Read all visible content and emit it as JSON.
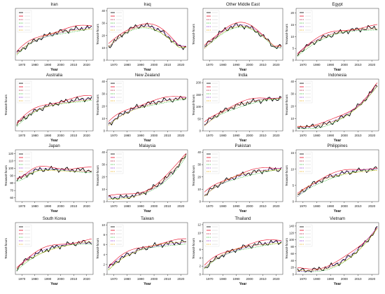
{
  "figure": {
    "colors": {
      "observed": "#000000",
      "red": "#e8001e",
      "darkred": "#a6002a",
      "green": "#2db82d",
      "purple": "#8a1fd6",
      "gold": "#e6a800",
      "blue": "#3a3aff",
      "grid": "#e3e3e3"
    },
    "legend_line_styles": [
      "solid",
      "solid",
      "dashed",
      "dashed",
      "dashed",
      "dashed"
    ]
  },
  "chart_data": [
    {
      "type": "line",
      "title": "Iran",
      "xlabel": "Year",
      "ylabel": "",
      "xticks": [
        1970,
        1980,
        1990,
        2000,
        2010,
        2020
      ],
      "xlim": [
        1965,
        2025
      ],
      "yticks": [],
      "ylim": [
        0,
        10
      ]
    },
    {
      "type": "line",
      "title": "Iraq",
      "xlabel": "Year",
      "ylabel": "Terawatt-hours",
      "xticks": [
        1970,
        1980,
        1990,
        2000,
        2010,
        2020
      ],
      "xlim": [
        1965,
        2025
      ],
      "yticks": [
        0,
        10,
        20,
        30,
        40
      ],
      "ylim": [
        0,
        42
      ]
    },
    {
      "type": "line",
      "title": "Other Middle East",
      "xlabel": "Year",
      "ylabel": "Terawatt-hours",
      "xticks": [
        1970,
        1980,
        1990,
        2000,
        2010,
        2020
      ],
      "xlim": [
        1965,
        2025
      ],
      "yticks": [],
      "ylim": [
        0,
        10
      ]
    },
    {
      "type": "line",
      "title": "Egypt",
      "xlabel": "Year",
      "ylabel": "Terawatt-hours",
      "xticks": [
        1970,
        1980,
        1990,
        2000,
        2010,
        2020
      ],
      "xlim": [
        1965,
        2025
      ],
      "yticks": [
        0,
        5,
        10,
        15,
        20
      ],
      "ylim": [
        0,
        22
      ]
    },
    {
      "type": "line",
      "title": "Australia",
      "xlabel": "Year",
      "ylabel": "Terawatt-hours",
      "xticks": [
        1970,
        1980,
        1990,
        2000,
        2010,
        2020
      ],
      "xlim": [
        1965,
        2025
      ],
      "yticks": [],
      "ylim": [
        0,
        10
      ]
    },
    {
      "type": "line",
      "title": "New Zealand",
      "xlabel": "Year",
      "ylabel": "Terawatt-hours",
      "xticks": [
        1970,
        1980,
        1990,
        2000,
        2010,
        2020
      ],
      "xlim": [
        1965,
        2025
      ],
      "yticks": [
        0,
        10,
        20,
        30,
        40
      ],
      "ylim": [
        0,
        42
      ]
    },
    {
      "type": "line",
      "title": "India",
      "xlabel": "Year",
      "ylabel": "Terawatt-hours",
      "xticks": [
        1970,
        1980,
        1990,
        2000,
        2010,
        2020
      ],
      "xlim": [
        1965,
        2025
      ],
      "yticks": [
        0,
        50,
        100,
        150,
        200
      ],
      "ylim": [
        0,
        215
      ]
    },
    {
      "type": "line",
      "title": "Indonesia",
      "xlabel": "Year",
      "ylabel": "Terawatt-hours",
      "xticks": [
        1970,
        1980,
        1990,
        2000,
        2010,
        2020
      ],
      "xlim": [
        1965,
        2025
      ],
      "yticks": [
        0,
        10,
        20,
        30,
        40
      ],
      "ylim": [
        0,
        42
      ]
    },
    {
      "type": "line",
      "title": "Japan",
      "xlabel": "Year",
      "ylabel": "Terawatt-hours",
      "xticks": [
        1970,
        1980,
        1990,
        2000,
        2010,
        2020
      ],
      "xlim": [
        1965,
        2025
      ],
      "yticks": [
        60,
        70,
        80,
        90,
        100,
        110,
        120
      ],
      "ylim": [
        55,
        125
      ]
    },
    {
      "type": "line",
      "title": "Malaysia",
      "xlabel": "Year",
      "ylabel": "Terawatt-hours",
      "xticks": [
        1970,
        1980,
        1990,
        2000,
        2010,
        2020
      ],
      "xlim": [
        1965,
        2025
      ],
      "yticks": [
        0,
        10,
        20,
        30,
        40
      ],
      "ylim": [
        0,
        42
      ]
    },
    {
      "type": "line",
      "title": "Pakistan",
      "xlabel": "Year",
      "ylabel": "Terawatt-hours",
      "xticks": [
        1970,
        1980,
        1990,
        2000,
        2010,
        2020
      ],
      "xlim": [
        1965,
        2025
      ],
      "yticks": [
        0,
        10,
        20,
        30,
        40
      ],
      "ylim": [
        0,
        42
      ]
    },
    {
      "type": "line",
      "title": "Philippines",
      "xlabel": "Year",
      "ylabel": "Terawatt-hours",
      "xticks": [
        1970,
        1980,
        1990,
        2000,
        2010,
        2020
      ],
      "xlim": [
        1965,
        2025
      ],
      "yticks": [
        0,
        5,
        10,
        15
      ],
      "ylim": [
        0,
        16
      ]
    },
    {
      "type": "line",
      "title": "South Korea",
      "xlabel": "Year",
      "ylabel": "Terawatt-hours",
      "xticks": [
        1970,
        1980,
        1990,
        2000,
        2010,
        2020
      ],
      "xlim": [
        1965,
        2025
      ],
      "yticks": [],
      "ylim": [
        0,
        10
      ]
    },
    {
      "type": "line",
      "title": "Taiwan",
      "xlabel": "Year",
      "ylabel": "Terawatt-hours",
      "xticks": [
        1970,
        1980,
        1990,
        2000,
        2010,
        2020
      ],
      "xlim": [
        1965,
        2025
      ],
      "yticks": [
        0,
        2,
        4,
        6,
        8,
        10
      ],
      "ylim": [
        0,
        10.5
      ]
    },
    {
      "type": "line",
      "title": "Thailand",
      "xlabel": "Year",
      "ylabel": "Terawatt-hours",
      "xticks": [
        1970,
        1980,
        1990,
        2000,
        2010,
        2020
      ],
      "xlim": [
        1965,
        2025
      ],
      "yticks": [
        0,
        2,
        4,
        6,
        8,
        10,
        12
      ],
      "ylim": [
        0,
        12.5
      ]
    },
    {
      "type": "line",
      "title": "Vietnam",
      "xlabel": "Year",
      "ylabel": "Terawatt-hours",
      "xticks": [
        1970,
        1980,
        1990,
        2000,
        2010,
        2020
      ],
      "xlim": [
        1965,
        2025
      ],
      "yticks": [
        0,
        20,
        40,
        60,
        80,
        100,
        120,
        140
      ],
      "ylim": [
        0,
        150
      ]
    }
  ]
}
